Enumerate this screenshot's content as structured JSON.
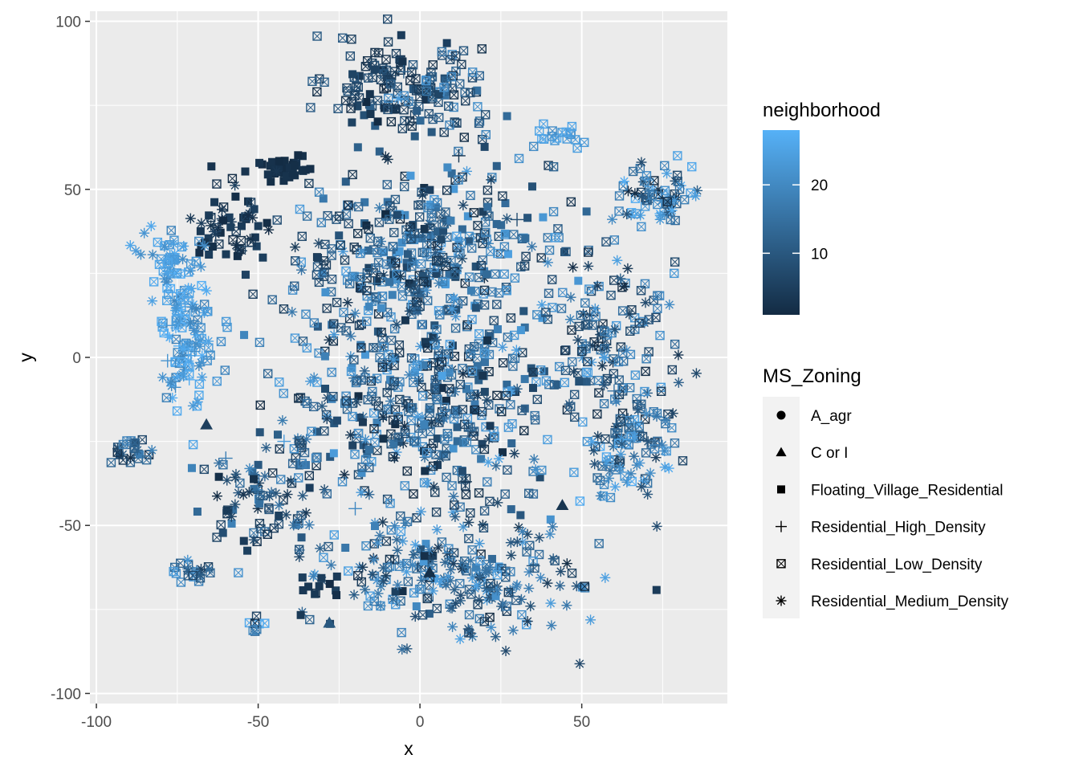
{
  "chart_data": {
    "type": "scatter",
    "title": "",
    "xlabel": "x",
    "ylabel": "y",
    "xlim": [
      -102,
      95
    ],
    "ylim": [
      -103,
      103
    ],
    "x_ticks": [
      -100,
      -50,
      0,
      50
    ],
    "x_tick_labels": [
      "-100",
      "-50",
      "0",
      "50"
    ],
    "y_ticks": [
      -100,
      -50,
      0,
      50,
      100
    ],
    "y_tick_labels": [
      "-100",
      "-50",
      "0",
      "50",
      "100"
    ],
    "grid": true,
    "legend_placement": "right",
    "color_legend": {
      "title": "neighborhood",
      "range": [
        1,
        28
      ],
      "ticks": [
        10,
        20
      ],
      "tick_labels": [
        "10",
        "20"
      ],
      "low_color": "#132b43",
      "high_color": "#56b1f7"
    },
    "shape_legend": {
      "title": "MS_Zoning",
      "entries": [
        {
          "label": "A_agr",
          "shape": "circle"
        },
        {
          "label": "C or I",
          "shape": "triangle"
        },
        {
          "label": "Floating_Village_Residential",
          "shape": "square"
        },
        {
          "label": "Residential_High_Density",
          "shape": "plus"
        },
        {
          "label": "Residential_Low_Density",
          "shape": "boxed-x"
        },
        {
          "label": "Residential_Medium_Density",
          "shape": "asterisk"
        }
      ]
    },
    "clusters": [
      {
        "x": -10,
        "y": 80,
        "sx": 9,
        "sy": 8,
        "n": 110,
        "c": [
          1,
          12
        ],
        "shapes": {
          "boxed-x": 0.8,
          "square": 0.2
        }
      },
      {
        "x": 10,
        "y": 80,
        "sx": 7,
        "sy": 7,
        "n": 60,
        "c": [
          3,
          22
        ],
        "shapes": {
          "boxed-x": 0.9,
          "square": 0.1
        }
      },
      {
        "x": 42,
        "y": 67,
        "sx": 4,
        "sy": 3,
        "n": 18,
        "c": [
          20,
          28
        ],
        "shapes": {
          "boxed-x": 1.0
        }
      },
      {
        "x": -42,
        "y": 56,
        "sx": 5,
        "sy": 2,
        "n": 40,
        "c": [
          1,
          3
        ],
        "shapes": {
          "square": 1.0
        }
      },
      {
        "x": -58,
        "y": 40,
        "sx": 6,
        "sy": 6,
        "n": 60,
        "c": [
          1,
          6
        ],
        "shapes": {
          "square": 0.5,
          "boxed-x": 0.3,
          "asterisk": 0.2
        }
      },
      {
        "x": -76,
        "y": 28,
        "sx": 5,
        "sy": 5,
        "n": 45,
        "c": [
          20,
          28
        ],
        "shapes": {
          "boxed-x": 0.6,
          "asterisk": 0.4
        }
      },
      {
        "x": -72,
        "y": 6,
        "sx": 4,
        "sy": 11,
        "n": 120,
        "c": [
          18,
          28
        ],
        "shapes": {
          "boxed-x": 0.45,
          "asterisk": 0.45,
          "plus": 0.1
        }
      },
      {
        "x": -88,
        "y": -28,
        "sx": 3,
        "sy": 2,
        "n": 25,
        "c": [
          1,
          20
        ],
        "shapes": {
          "boxed-x": 0.6,
          "asterisk": 0.3,
          "square": 0.1
        }
      },
      {
        "x": -70,
        "y": -63,
        "sx": 3,
        "sy": 2,
        "n": 22,
        "c": [
          5,
          25
        ],
        "shapes": {
          "boxed-x": 0.5,
          "asterisk": 0.5
        }
      },
      {
        "x": -48,
        "y": -40,
        "sx": 9,
        "sy": 10,
        "n": 90,
        "c": [
          1,
          20
        ],
        "shapes": {
          "boxed-x": 0.5,
          "square": 0.2,
          "asterisk": 0.3
        }
      },
      {
        "x": 0,
        "y": 30,
        "sx": 20,
        "sy": 15,
        "n": 420,
        "c": [
          1,
          25
        ],
        "shapes": {
          "boxed-x": 0.65,
          "square": 0.25,
          "asterisk": 0.1
        }
      },
      {
        "x": 0,
        "y": -15,
        "sx": 22,
        "sy": 18,
        "n": 470,
        "c": [
          1,
          25
        ],
        "shapes": {
          "boxed-x": 0.65,
          "square": 0.15,
          "asterisk": 0.2
        }
      },
      {
        "x": 10,
        "y": -65,
        "sx": 20,
        "sy": 10,
        "n": 260,
        "c": [
          1,
          25
        ],
        "shapes": {
          "asterisk": 0.5,
          "boxed-x": 0.4,
          "square": 0.1
        }
      },
      {
        "x": 60,
        "y": 5,
        "sx": 10,
        "sy": 14,
        "n": 150,
        "c": [
          1,
          25
        ],
        "shapes": {
          "boxed-x": 0.7,
          "asterisk": 0.3
        }
      },
      {
        "x": 65,
        "y": -28,
        "sx": 8,
        "sy": 8,
        "n": 90,
        "c": [
          5,
          28
        ],
        "shapes": {
          "boxed-x": 0.6,
          "asterisk": 0.4
        }
      },
      {
        "x": 72,
        "y": 48,
        "sx": 6,
        "sy": 4,
        "n": 70,
        "c": [
          1,
          28
        ],
        "shapes": {
          "boxed-x": 0.5,
          "asterisk": 0.5
        }
      },
      {
        "x": -30,
        "y": -68,
        "sx": 3,
        "sy": 2,
        "n": 10,
        "c": [
          1,
          5
        ],
        "shapes": {
          "square": 1.0
        }
      },
      {
        "x": -50,
        "y": -80,
        "sx": 2,
        "sy": 1.5,
        "n": 8,
        "c": [
          1,
          28
        ],
        "shapes": {
          "boxed-x": 1.0
        }
      }
    ],
    "sparse_points": [
      {
        "x": -28,
        "y": -79,
        "c": 10,
        "shape": "triangle"
      },
      {
        "x": 44,
        "y": -44,
        "c": 3,
        "shape": "triangle"
      },
      {
        "x": -66,
        "y": -20,
        "c": 5,
        "shape": "triangle"
      },
      {
        "x": 3,
        "y": -64,
        "c": 2,
        "shape": "triangle"
      },
      {
        "x": -60,
        "y": -30,
        "c": 18,
        "shape": "plus"
      },
      {
        "x": -78,
        "y": -1,
        "c": 22,
        "shape": "plus"
      },
      {
        "x": -54,
        "y": 33,
        "c": 6,
        "shape": "plus"
      },
      {
        "x": 14,
        "y": -37,
        "c": 4,
        "shape": "plus"
      },
      {
        "x": -42,
        "y": -25,
        "c": 24,
        "shape": "plus"
      },
      {
        "x": 30,
        "y": 41,
        "c": 8,
        "shape": "plus"
      },
      {
        "x": -5,
        "y": 85,
        "c": 12,
        "shape": "plus"
      },
      {
        "x": 60,
        "y": -10,
        "c": 15,
        "shape": "plus"
      },
      {
        "x": -20,
        "y": -45,
        "c": 20,
        "shape": "plus"
      },
      {
        "x": 35,
        "y": -62,
        "c": 9,
        "shape": "plus"
      },
      {
        "x": 12,
        "y": 60,
        "c": 3,
        "shape": "plus"
      },
      {
        "x": -14,
        "y": 22,
        "c": 14,
        "shape": "plus"
      }
    ]
  }
}
